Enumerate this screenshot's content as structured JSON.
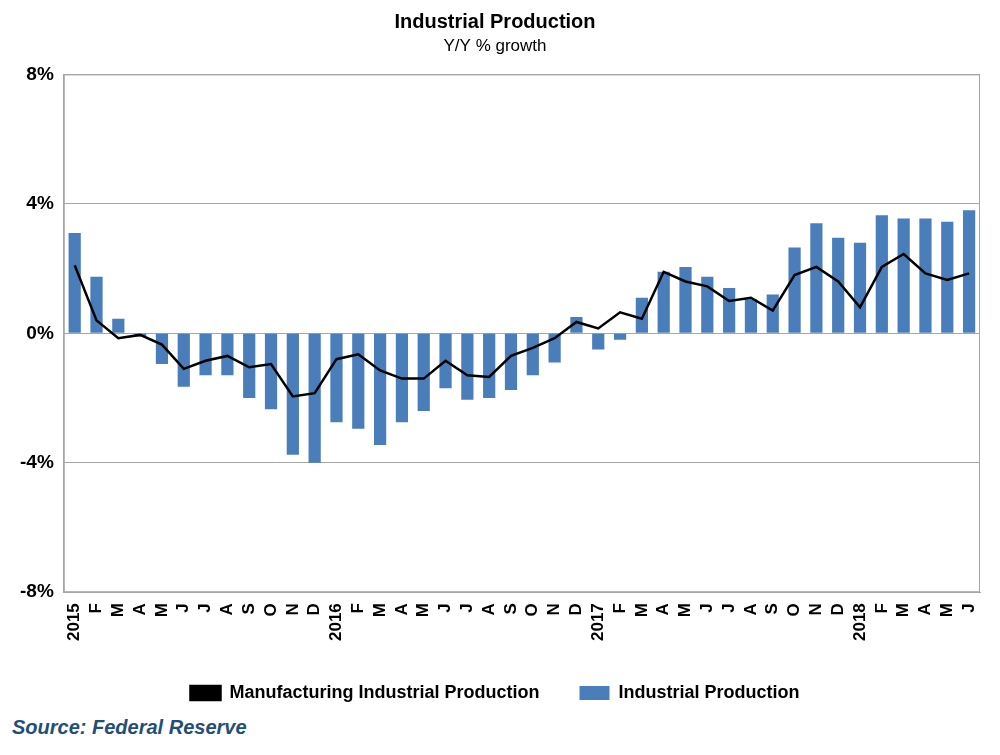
{
  "chart_data": {
    "type": "bar",
    "title": "Industrial Production",
    "subtitle": "Y/Y % growth",
    "source": "Source: Federal Reserve",
    "categories": [
      "2015",
      "F",
      "M",
      "A",
      "M",
      "J",
      "J",
      "A",
      "S",
      "O",
      "N",
      "D",
      "2016",
      "F",
      "M",
      "A",
      "M",
      "J",
      "J",
      "A",
      "S",
      "O",
      "N",
      "D",
      "2017",
      "F",
      "M",
      "A",
      "M",
      "J",
      "J",
      "A",
      "S",
      "O",
      "N",
      "D",
      "2018",
      "F",
      "M",
      "A",
      "M",
      "J"
    ],
    "series": [
      {
        "name": "Industrial Production",
        "type": "bar",
        "color": "#4a7ebb",
        "values": [
          3.1,
          1.75,
          0.45,
          -0.1,
          -0.95,
          -1.65,
          -1.3,
          -1.3,
          -2.0,
          -2.35,
          -3.75,
          -4.0,
          -2.75,
          -2.95,
          -3.45,
          -2.75,
          -2.4,
          -1.7,
          -2.05,
          -2.0,
          -1.75,
          -1.3,
          -0.9,
          0.5,
          -0.5,
          -0.2,
          1.1,
          1.9,
          2.05,
          1.75,
          1.4,
          1.05,
          1.2,
          2.65,
          3.4,
          2.95,
          2.8,
          3.65,
          3.55,
          3.55,
          3.45,
          3.8
        ]
      },
      {
        "name": "Manufacturing Industrial Production",
        "type": "line",
        "color": "#000000",
        "line_style": "solid",
        "marker": "none",
        "values": [
          2.1,
          0.4,
          -0.15,
          -0.05,
          -0.35,
          -1.1,
          -0.85,
          -0.7,
          -1.05,
          -0.95,
          -1.95,
          -1.85,
          -0.8,
          -0.65,
          -1.15,
          -1.4,
          -1.4,
          -0.85,
          -1.3,
          -1.35,
          -0.7,
          -0.45,
          -0.15,
          0.35,
          0.15,
          0.65,
          0.45,
          1.9,
          1.6,
          1.45,
          1.0,
          1.1,
          0.7,
          1.8,
          2.05,
          1.6,
          0.8,
          2.05,
          2.45,
          1.85,
          1.65,
          1.85
        ]
      }
    ],
    "ylim": [
      -8,
      8
    ],
    "yticks": [
      {
        "value": -8,
        "label": "-8%"
      },
      {
        "value": -4,
        "label": "-4%"
      },
      {
        "value": 0,
        "label": "0%"
      },
      {
        "value": 4,
        "label": "4%"
      },
      {
        "value": 8,
        "label": "8%"
      }
    ],
    "grid": true,
    "legend": "bottom"
  }
}
